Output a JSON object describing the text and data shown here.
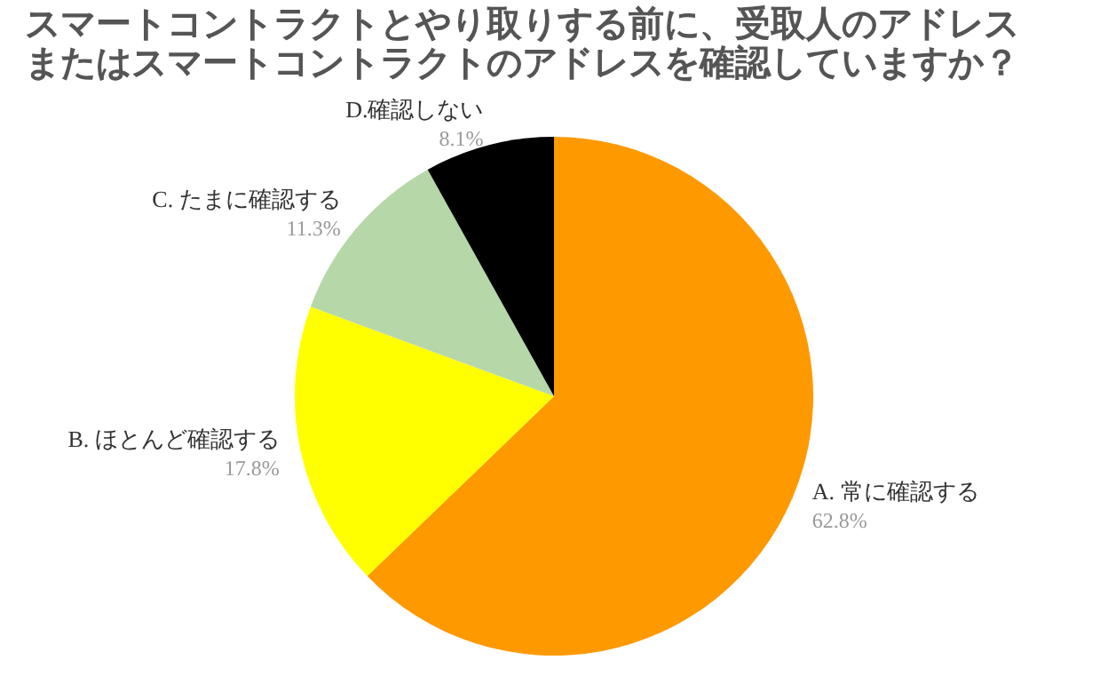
{
  "chart_data": {
    "type": "pie",
    "title": "スマートコントラクトとやり取りする前に、受取人のアドレスまたはスマートコントラクトのアドレスを確認していますか？",
    "categories": [
      "A. 常に確認する",
      "B. ほとんど確認する",
      "C. たまに確認する",
      "D.確認しない"
    ],
    "values": [
      62.8,
      17.8,
      11.3,
      8.1
    ],
    "value_labels": [
      "62.8%",
      "17.8%",
      "11.3%",
      "8.1%"
    ],
    "colors": [
      "#ff9900",
      "#ffff00",
      "#b6d7a8",
      "#000000"
    ],
    "legend": false
  }
}
